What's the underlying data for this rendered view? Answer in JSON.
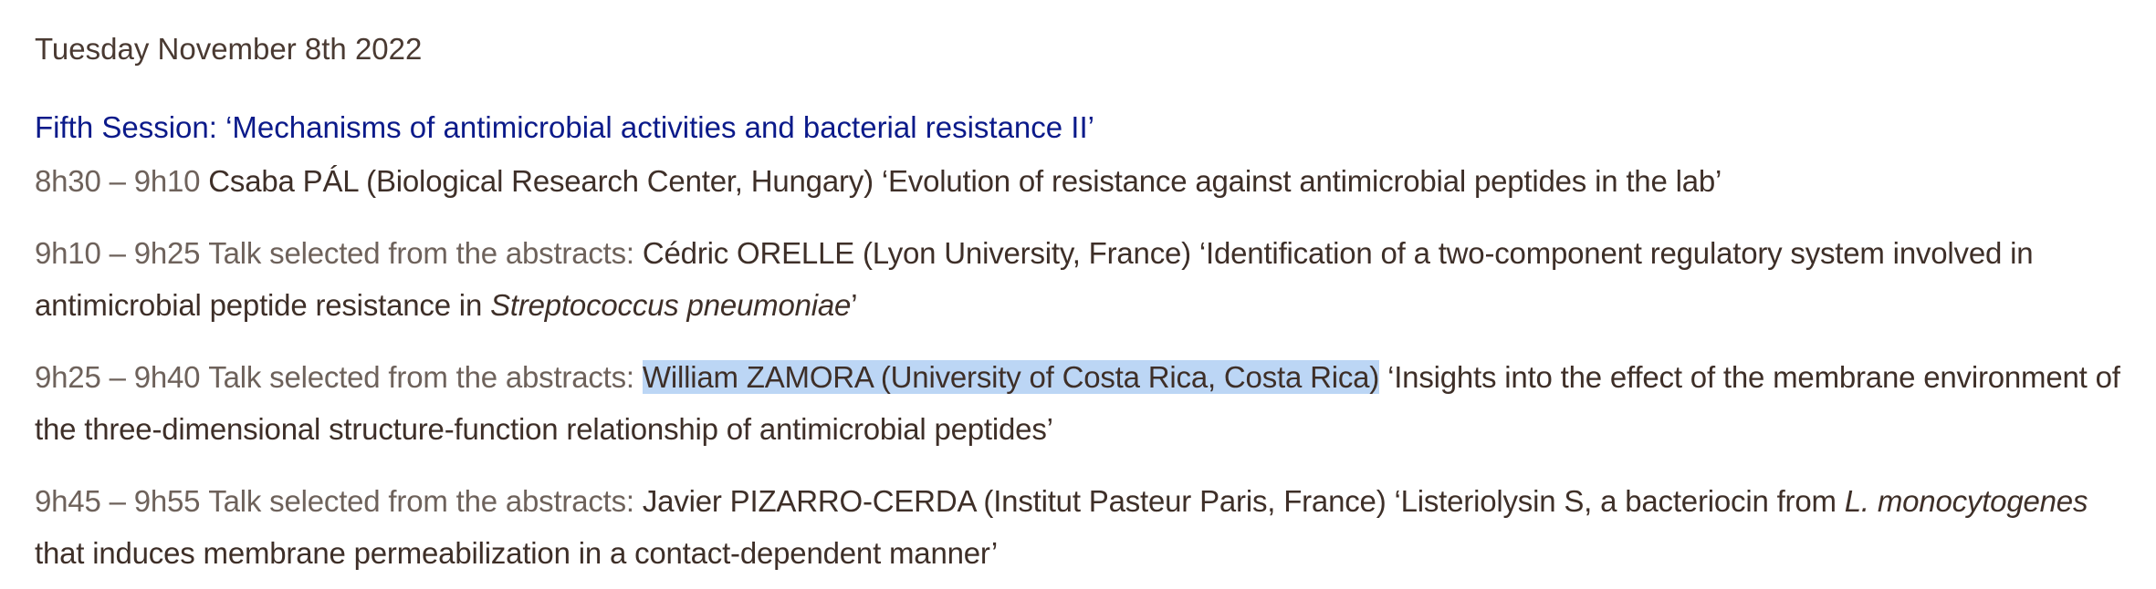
{
  "date_heading": "Tuesday November 8th 2022",
  "session_title": "Fifth Session: ‘Mechanisms of antimicrobial activities and bacterial resistance II’",
  "talks": [
    {
      "time": "8h30 – 9h10",
      "selected_label": "",
      "speaker": "Csaba PÁL (Biological Research Center, Hungary)",
      "title_before": "‘Evolution of resistance against antimicrobial peptides in the lab’",
      "title_italic": "",
      "title_after": ""
    },
    {
      "time": "9h10 – 9h25",
      "selected_label": "Talk selected from the abstracts:",
      "speaker": "Cédric ORELLE (Lyon University, France)",
      "title_before": "‘Identification of a two-component regulatory system involved in antimicrobial peptide resistance in",
      "title_italic": "Streptococcus pneumoniae",
      "title_after": "’"
    },
    {
      "time": "9h25 – 9h40",
      "selected_label": "Talk selected from the abstracts:",
      "speaker": "William ZAMORA (University of Costa Rica, Costa Rica)",
      "title_before": "‘Insights into the effect of the membrane environment of the three-dimensional structure-function relationship of antimicrobial peptides’",
      "title_italic": "",
      "title_after": ""
    },
    {
      "time": "9h45 – 9h55",
      "selected_label": "Talk selected from the abstracts:",
      "speaker": "Javier PIZARRO-CERDA (Institut Pasteur Paris, France)",
      "title_before": "‘Listeriolysin S, a bacteriocin from",
      "title_italic": "L. monocytogenes",
      "title_after": "that induces membrane permeabilization in a contact-dependent manner’"
    }
  ],
  "colors": {
    "session_title": "#0b1a8a",
    "text": "#3e2f28",
    "time": "#6e625b",
    "selection_highlight": "#bcd6f5"
  }
}
